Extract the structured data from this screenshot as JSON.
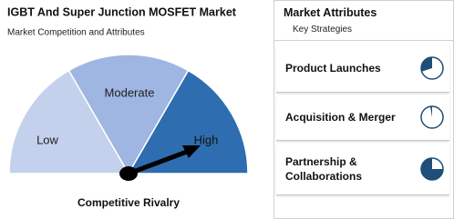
{
  "header": {
    "title": "IGBT And Super Junction MOSFET Market",
    "subtitle": "Market Competition and Attributes"
  },
  "gauge": {
    "labels": [
      "Low",
      "Moderate",
      "High"
    ],
    "caption": "Competitive Rivalry"
  },
  "attributes": {
    "title": "Market Attributes",
    "subtitle": "Key Strategies",
    "items": [
      "Product Launches",
      "Acquisition & Merger",
      "Partnership & Collaborations"
    ]
  }
}
